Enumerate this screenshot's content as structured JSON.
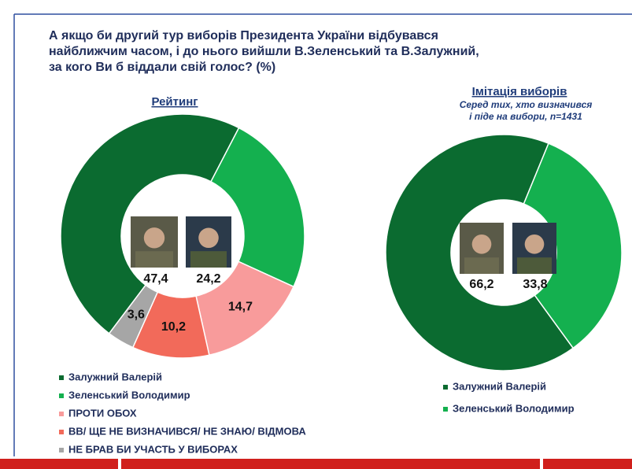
{
  "title": [
    "А якщо би другий тур виборів Президента України відбувався",
    "найближчим часом, і до нього вийшли В.Зеленський та В.Залужний,",
    "за кого Ви б віддали свій голос? (%)"
  ],
  "chart_data": [
    {
      "type": "donut",
      "title": "Рейтинг",
      "categories": [
        "Залужний Валерій",
        "Зеленський Володимир",
        "ПРОТИ ОБОХ",
        "ВВ/ ЩЕ НЕ ВИЗНАЧИВСЯ/ НЕ ЗНАЮ/ ВІДМОВА",
        "НЕ БРАВ БИ УЧАСТЬ У ВИБОРАХ"
      ],
      "values": [
        47.4,
        24.2,
        14.7,
        10.2,
        3.6
      ],
      "value_labels": [
        "47,4",
        "24,2",
        "14,7",
        "10,2",
        "3,6"
      ],
      "colors": [
        "#0b6b30",
        "#14b04f",
        "#f89b9b",
        "#f26a5a",
        "#a6a6a6"
      ]
    },
    {
      "type": "donut",
      "title": "Імітація виборів",
      "subtitle": [
        "Серед тих, хто визначився",
        "і піде на вибори, n=1431"
      ],
      "categories": [
        "Залужний Валерій",
        "Зеленський Володимир"
      ],
      "values": [
        66.2,
        33.8
      ],
      "value_labels": [
        "66,2",
        "33,8"
      ],
      "colors": [
        "#0b6b30",
        "#14b04f"
      ]
    }
  ]
}
